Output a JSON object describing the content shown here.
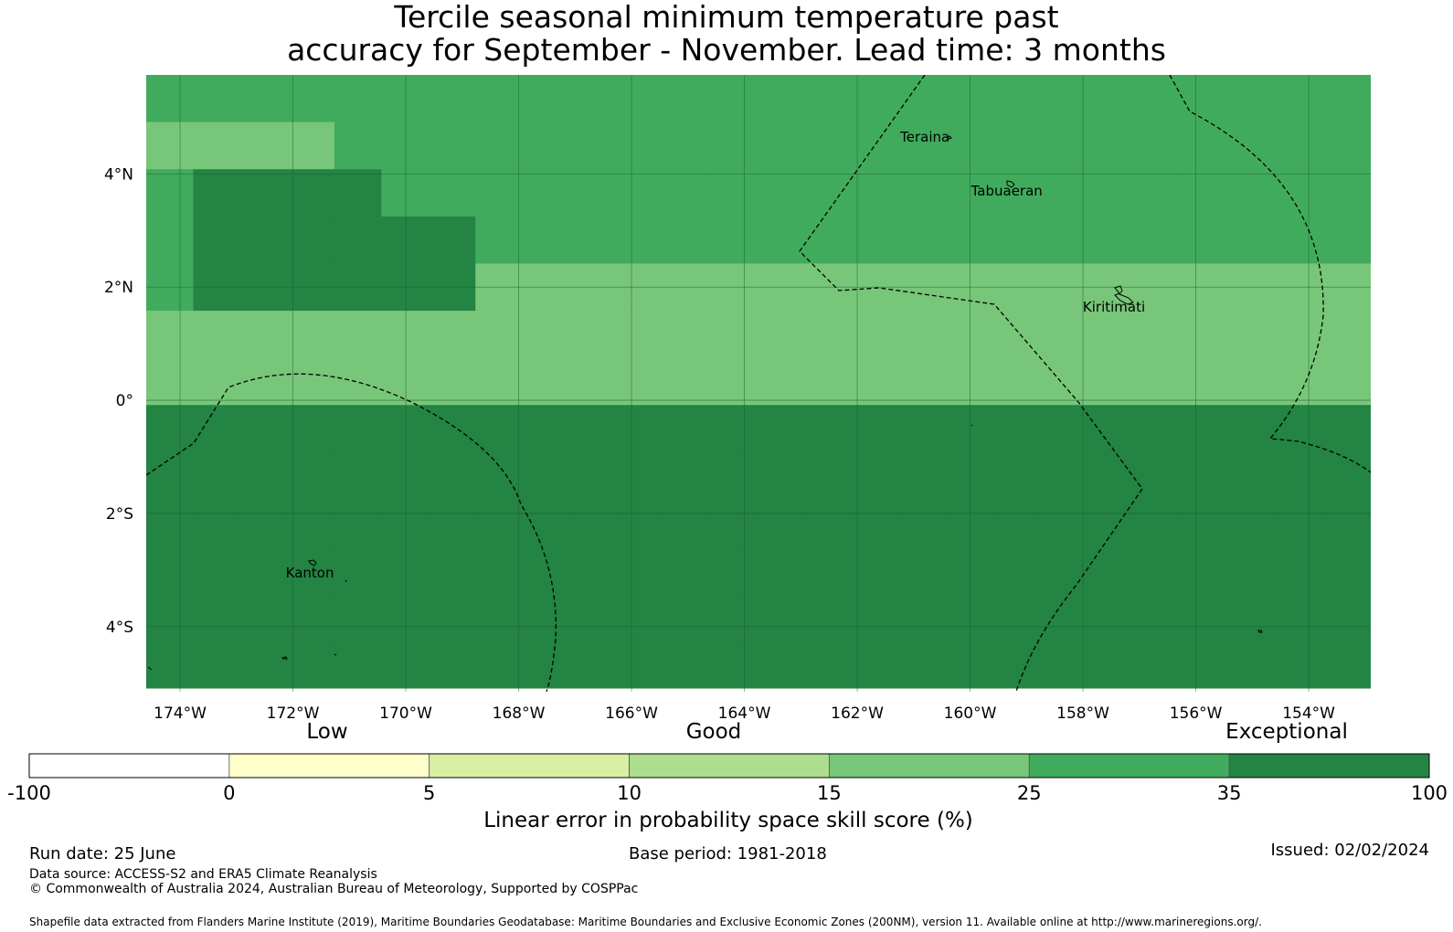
{
  "title": {
    "line1": "Tercile seasonal minimum temperature past",
    "line2": "accuracy for September - November. Lead time: 3 months"
  },
  "map": {
    "lon_range": [
      -174.6,
      -152.9
    ],
    "lat_range": [
      -5.15,
      5.75
    ],
    "lon_ticks": [
      {
        "value": -174,
        "label": "174°W"
      },
      {
        "value": -172,
        "label": "172°W"
      },
      {
        "value": -170,
        "label": "170°W"
      },
      {
        "value": -168,
        "label": "168°W"
      },
      {
        "value": -166,
        "label": "166°W"
      },
      {
        "value": -164,
        "label": "164°W"
      },
      {
        "value": -162,
        "label": "162°W"
      },
      {
        "value": -160,
        "label": "160°W"
      },
      {
        "value": -158,
        "label": "158°W"
      },
      {
        "value": -156,
        "label": "156°W"
      },
      {
        "value": -154,
        "label": "154°W"
      }
    ],
    "lat_ticks": [
      {
        "value": 4,
        "label": "4°N"
      },
      {
        "value": 2,
        "label": "2°N"
      },
      {
        "value": 0,
        "label": "0°"
      },
      {
        "value": -2,
        "label": "2°S"
      },
      {
        "value": -4,
        "label": "4°S"
      }
    ],
    "places": [
      {
        "name": "Teraina",
        "lon": -160.8,
        "lat": 4.65
      },
      {
        "name": "Tabuaeran",
        "lon": -159.35,
        "lat": 3.7
      },
      {
        "name": "Kiritimati",
        "lon": -157.45,
        "lat": 1.65
      },
      {
        "name": "Kanton",
        "lon": -171.7,
        "lat": -3.05
      }
    ],
    "cell_grid": {
      "lon_start": -174.6,
      "lat_start": 5.75,
      "cell_deg": 0.8334,
      "rows": [
        "4444444444444444444444444444444",
        "3333444444444444444444444444444",
        "4222244444444444444444444444444",
        "4222222444444444444444444444444",
        "4222222333333333333333333333333",
        "3333333333333333333333333333333",
        "3333333333333333333333333333333",
        "5555555555555555555555555555555",
        "5555555555555555555555555555555",
        "5555555555555555555555555555555",
        "5555555555555555555555555555555",
        "5555555555555555555555555555555",
        "5555555555555555555555555555555"
      ]
    },
    "colors": {
      "band_15_25": "#78c679",
      "band_25_35": "#41ab5d",
      "band_35_100": "#238443",
      "boundary": "#000000",
      "land": "#000000"
    }
  },
  "colorbar": {
    "top_labels": [
      "Low",
      "Good",
      "Exceptional"
    ],
    "bins": [
      {
        "from": "-100",
        "to": "0",
        "color": "#ffffff"
      },
      {
        "from": "0",
        "to": "5",
        "color": "#ffffcc"
      },
      {
        "from": "5",
        "to": "10",
        "color": "#d9f0a3"
      },
      {
        "from": "10",
        "to": "15",
        "color": "#addd8e"
      },
      {
        "from": "15",
        "to": "25",
        "color": "#78c679"
      },
      {
        "from": "25",
        "to": "35",
        "color": "#41ab5d"
      },
      {
        "from": "35",
        "to": "100",
        "color": "#238443"
      }
    ],
    "tick_labels": [
      "-100",
      "0",
      "5",
      "10",
      "15",
      "25",
      "35",
      "100"
    ],
    "label": "Linear error in probability space skill score (%)"
  },
  "footer": {
    "run_date": "Run date: 25 June",
    "base_period": "Base period: 1981-2018",
    "issued": "Issued: 02/02/2024",
    "data_source": "Data source: ACCESS-S2 and ERA5 Climate Reanalysis",
    "copyright": "© Commonwealth of Australia 2024, Australian Bureau of Meteorology, Supported by COSPPac",
    "shapefile": "Shapefile data extracted from Flanders Marine Institute (2019), Maritime Boundaries Geodatabase: Maritime Boundaries and Exclusive Economic Zones (200NM), version 11. Available online at http://www.marineregions.org/."
  }
}
